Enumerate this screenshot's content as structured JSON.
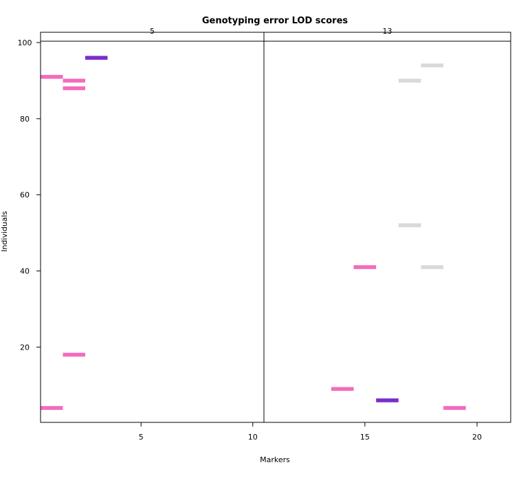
{
  "chart_data": {
    "type": "heatmap",
    "title": "Genotyping error LOD scores",
    "xlabel": "Markers",
    "ylabel": "Individuals",
    "ylim": [
      0,
      100
    ],
    "y_ticks": [
      "20",
      "40",
      "60",
      "80",
      "100"
    ],
    "grid": false,
    "colors": {
      "high": "#e83fa8",
      "very_high": "#7a2ac2",
      "low": "#d3d3d3",
      "pink_fill": "#f46bbd",
      "purple_fill": "#7b2cc9",
      "grey_fill": "#d9d9d9"
    },
    "panels": [
      {
        "strip": "5",
        "x_range": [
          0.5,
          10.5
        ],
        "x_ticks": [
          "5",
          "10"
        ],
        "cells": [
          {
            "marker": 1,
            "individual": 91,
            "level": "pink"
          },
          {
            "marker": 2,
            "individual": 90,
            "level": "pink"
          },
          {
            "marker": 2,
            "individual": 88,
            "level": "pink"
          },
          {
            "marker": 3,
            "individual": 96,
            "level": "purple"
          },
          {
            "marker": 2,
            "individual": 18,
            "level": "pink"
          },
          {
            "marker": 1,
            "individual": 4,
            "level": "pink"
          }
        ]
      },
      {
        "strip": "13",
        "x_range": [
          10.5,
          21.5
        ],
        "x_ticks": [
          "15",
          "20"
        ],
        "cells": [
          {
            "marker": 18,
            "individual": 94,
            "level": "grey"
          },
          {
            "marker": 17,
            "individual": 90,
            "level": "grey"
          },
          {
            "marker": 17,
            "individual": 52,
            "level": "grey"
          },
          {
            "marker": 15,
            "individual": 41,
            "level": "pink"
          },
          {
            "marker": 18,
            "individual": 41,
            "level": "grey"
          },
          {
            "marker": 14,
            "individual": 9,
            "level": "pink"
          },
          {
            "marker": 16,
            "individual": 6,
            "level": "purple"
          },
          {
            "marker": 19,
            "individual": 4,
            "level": "pink"
          }
        ]
      }
    ]
  }
}
